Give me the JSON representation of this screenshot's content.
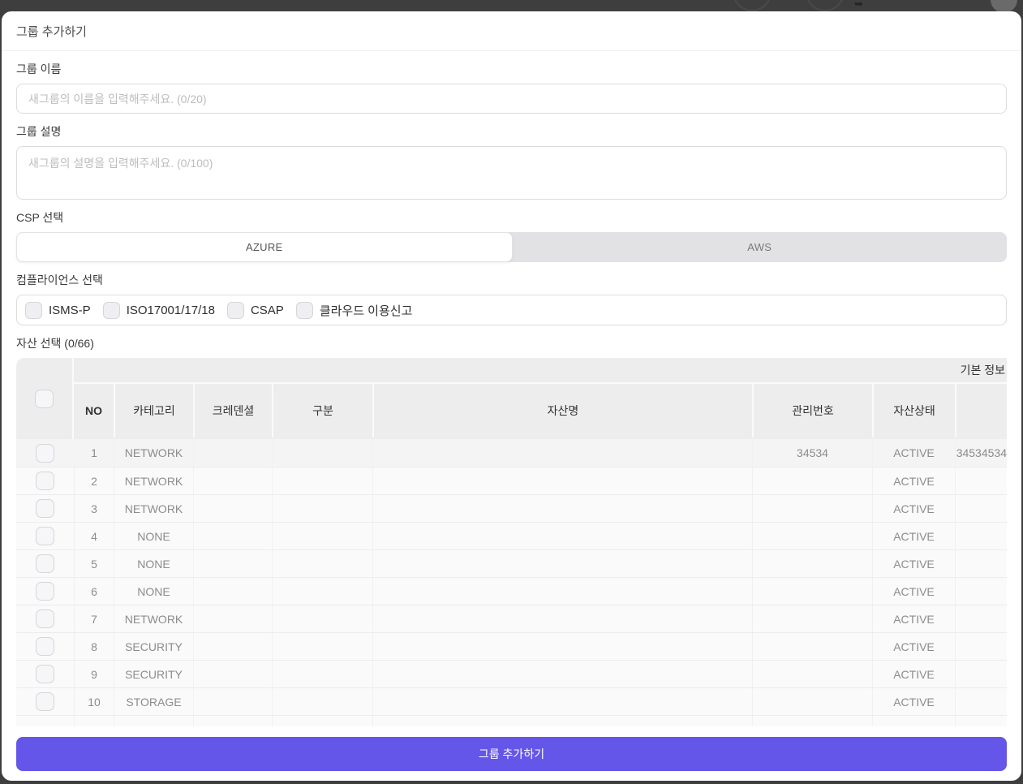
{
  "modal": {
    "title": "그룹 추가하기"
  },
  "form": {
    "group_name": {
      "label": "그룹 이름",
      "value": "",
      "placeholder": "새그룹의 이름을 입력해주세요. (0/20)"
    },
    "group_desc": {
      "label": "그룹 설명",
      "value": "",
      "placeholder": "새그룹의 설명을 입력해주세요. (0/100)"
    },
    "csp": {
      "label": "CSP 선택",
      "options": [
        "AZURE",
        "AWS"
      ],
      "selected": "AZURE"
    },
    "compliance": {
      "label": "컴플라이언스 선택",
      "options": [
        {
          "label": "ISMS-P",
          "checked": false
        },
        {
          "label": "ISO17001/17/18",
          "checked": false
        },
        {
          "label": "CSAP",
          "checked": false
        },
        {
          "label": "클라우드 이용신고",
          "checked": false
        }
      ]
    },
    "assets": {
      "label": "자산 선택 (0/66)",
      "selected_count": 0,
      "total_count": 66
    }
  },
  "table": {
    "group_header": "기본 정보",
    "columns": [
      "NO",
      "카테고리",
      "크레덴셜",
      "구분",
      "자산명",
      "관리번호",
      "자산상태",
      ""
    ],
    "select_all_checked": false,
    "rows": [
      {
        "checked": false,
        "no": "1",
        "category": "NETWORK",
        "credential": "",
        "division": "",
        "asset_name": "",
        "mgmt_no": "34534",
        "status": "ACTIVE",
        "extra": "34534534"
      },
      {
        "checked": false,
        "no": "2",
        "category": "NETWORK",
        "credential": "",
        "division": "",
        "asset_name": "",
        "mgmt_no": "",
        "status": "ACTIVE",
        "extra": ""
      },
      {
        "checked": false,
        "no": "3",
        "category": "NETWORK",
        "credential": "",
        "division": "",
        "asset_name": "",
        "mgmt_no": "",
        "status": "ACTIVE",
        "extra": ""
      },
      {
        "checked": false,
        "no": "4",
        "category": "NONE",
        "credential": "",
        "division": "",
        "asset_name": "",
        "mgmt_no": "",
        "status": "ACTIVE",
        "extra": ""
      },
      {
        "checked": false,
        "no": "5",
        "category": "NONE",
        "credential": "",
        "division": "",
        "asset_name": "",
        "mgmt_no": "",
        "status": "ACTIVE",
        "extra": ""
      },
      {
        "checked": false,
        "no": "6",
        "category": "NONE",
        "credential": "",
        "division": "",
        "asset_name": "",
        "mgmt_no": "",
        "status": "ACTIVE",
        "extra": ""
      },
      {
        "checked": false,
        "no": "7",
        "category": "NETWORK",
        "credential": "",
        "division": "",
        "asset_name": "",
        "mgmt_no": "",
        "status": "ACTIVE",
        "extra": ""
      },
      {
        "checked": false,
        "no": "8",
        "category": "SECURITY",
        "credential": "",
        "division": "",
        "asset_name": "",
        "mgmt_no": "",
        "status": "ACTIVE",
        "extra": ""
      },
      {
        "checked": false,
        "no": "9",
        "category": "SECURITY",
        "credential": "",
        "division": "",
        "asset_name": "",
        "mgmt_no": "",
        "status": "ACTIVE",
        "extra": ""
      },
      {
        "checked": false,
        "no": "10",
        "category": "STORAGE",
        "credential": "",
        "division": "",
        "asset_name": "",
        "mgmt_no": "",
        "status": "ACTIVE",
        "extra": ""
      },
      {
        "checked": false,
        "no": "",
        "category": "",
        "credential": "",
        "division": "",
        "asset_name": "",
        "mgmt_no": "",
        "status": "",
        "extra": ""
      }
    ]
  },
  "footer": {
    "submit_label": "그룹 추가하기"
  },
  "colors": {
    "accent": "#6456e8",
    "backdrop": "#3e3e3e",
    "table_header_bg": "#ededee"
  }
}
